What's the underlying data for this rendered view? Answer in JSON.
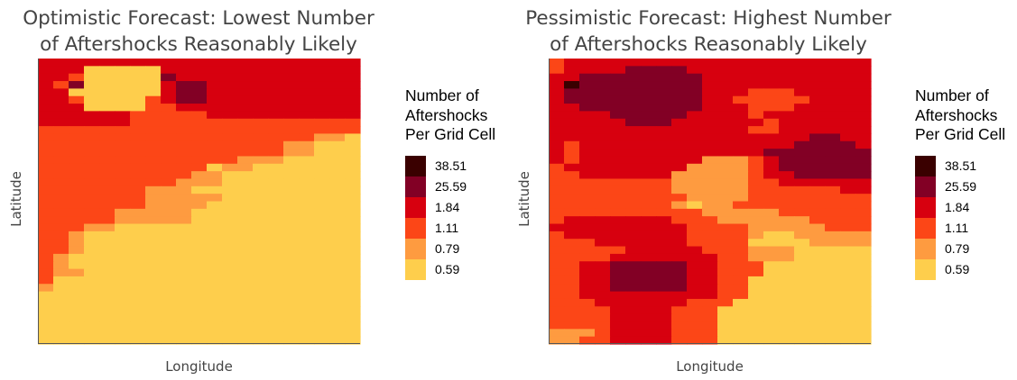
{
  "chart_data": [
    {
      "type": "heatmap",
      "title_lines": [
        "Optimistic Forecast: Lowest Number",
        "of Aftershocks Reasonably Likely"
      ],
      "xlabel": "Longitude",
      "ylabel": "Latitude",
      "legend": {
        "title_lines": [
          "Number of",
          "Aftershocks",
          "Per Grid Cell"
        ],
        "placement": "right",
        "levels": [
          {
            "label": "38.51",
            "color": "#3a0000"
          },
          {
            "label": "25.59",
            "color": "#820025"
          },
          {
            "label": "1.84",
            "color": "#d7000f"
          },
          {
            "label": "1.11",
            "color": "#fc4617"
          },
          {
            "label": "0.79",
            "color": "#fe9b40"
          },
          {
            "label": "0.59",
            "color": "#fece4c"
          }
        ]
      },
      "grid": [
        "222222222222222222222",
        "222555552222222222222",
        "223555551222222222222",
        "231555552112222222222",
        "225555552112222222222",
        "223555532112222222222",
        "222555533222222222222",
        "222222333332222222222",
        "222222333333333333333",
        "333333333333333333333",
        "333333333333333333445",
        "333333333333333344555",
        "333333333333333344555",
        "333333333333344455555",
        "333333333335445555555",
        "333333333344555555555",
        "333333333444555555555",
        "333333344455555555555",
        "333333344444555555555",
        "333333344445555555555",
        "333334444455555555555",
        "333334444455555555555",
        "333445555555555555555",
        "334555555555555555555",
        "334555555555555555555",
        "334555555555555555555",
        "345555555555555555555",
        "345555555555555555555",
        "344555555555555555555",
        "355555555555555555555",
        "455555555555555555555",
        "555555555555555555555",
        "555555555555555555555",
        "555555555555555555555",
        "555555555555555555555",
        "555555555555555555555",
        "555555555555555555555",
        "555555555555555555555"
      ]
    },
    {
      "type": "heatmap",
      "title_lines": [
        "Pessimistic Forecast: Highest Number",
        "of Aftershocks Reasonably Likely"
      ],
      "xlabel": "Longitude",
      "ylabel": "Latitude",
      "legend": {
        "title_lines": [
          "Number of",
          "Aftershocks",
          "Per Grid Cell"
        ],
        "placement": "right",
        "levels": [
          {
            "label": "38.51",
            "color": "#3a0000"
          },
          {
            "label": "25.59",
            "color": "#820025"
          },
          {
            "label": "1.84",
            "color": "#d7000f"
          },
          {
            "label": "1.11",
            "color": "#fc4617"
          },
          {
            "label": "0.79",
            "color": "#fe9b40"
          },
          {
            "label": "0.59",
            "color": "#fece4c"
          }
        ]
      },
      "grid": [
        "322222222222222222222",
        "322221111222222222222",
        "221111111122222222222",
        "201111111122222222222",
        "211111111122233322222",
        "211111111122333332222",
        "221111111122233322222",
        "222211111222232222222",
        "222221112222223222222",
        "222222222222233222222",
        "222222222222222221122",
        "232222222222222211112",
        "232222222222221111111",
        "232222222244432111111",
        "322222222444432111111",
        "332222224444432211111",
        "333333334444433222222",
        "333333334444433333322",
        "333333333444433333333",
        "333333334544333333333",
        "333333333344444333333",
        "322222223334444443333",
        "222222222333344444333",
        "322222222333345544444",
        "333222222333355554444",
        "333332222233344455555",
        "333322222223344455555",
        "332211111223335555555",
        "332211111223335555555",
        "332211111223355555555",
        "332211111223355555555",
        "332222222223355555555",
        "333222222333555555555",
        "333322223335555555555",
        "333322223335555555555",
        "333322223335555555555",
        "444322223335555555555",
        "443322223335555555555"
      ]
    }
  ]
}
